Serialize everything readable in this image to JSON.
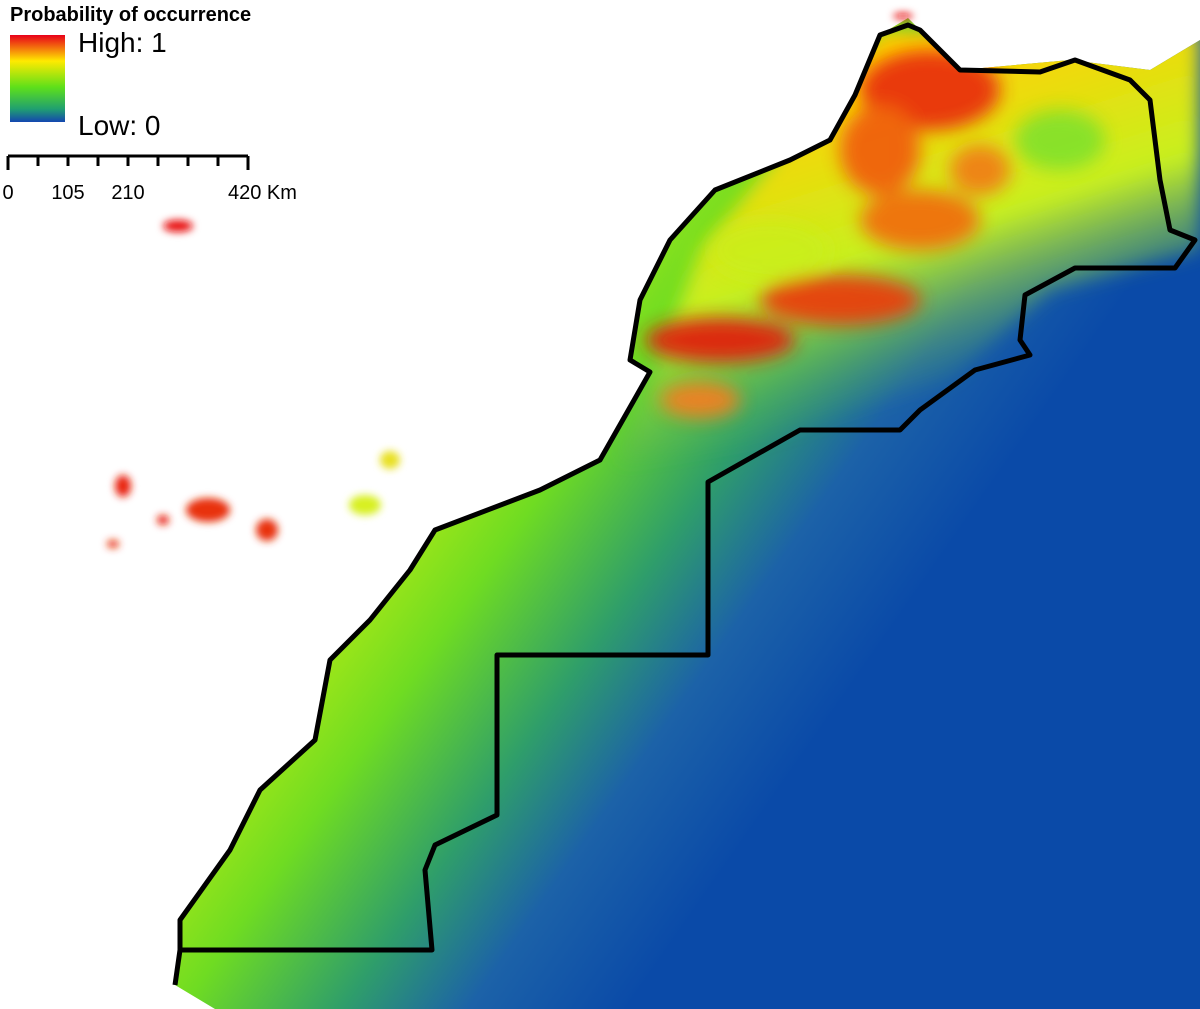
{
  "legend": {
    "title": "Probability of occurrence",
    "high": "High: 1",
    "low": "Low: 0"
  },
  "scale_bar": {
    "labels": [
      "0",
      "105",
      "210",
      "420 Km"
    ]
  }
}
